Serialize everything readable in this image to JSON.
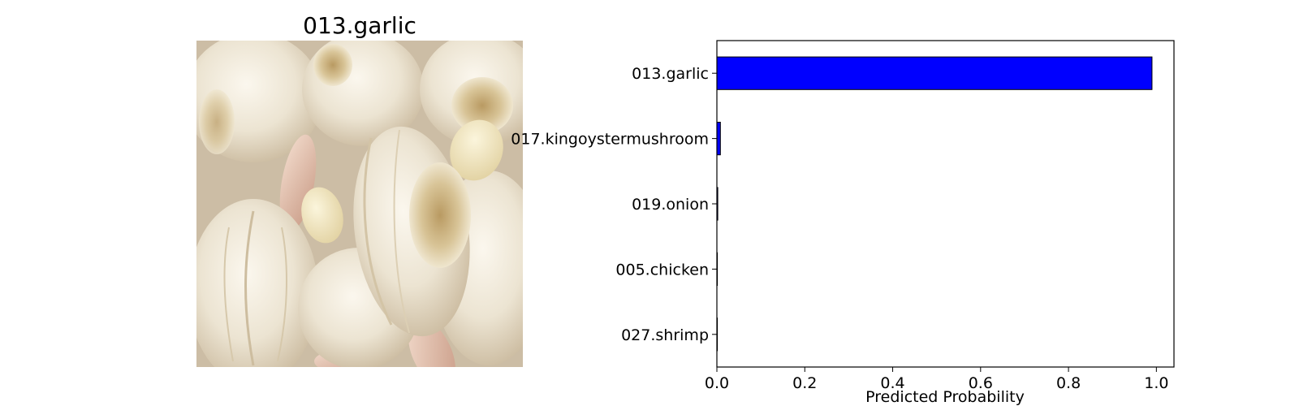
{
  "image_panel": {
    "title": "013.garlic",
    "picture": "garlic-bulbs-photo"
  },
  "colors": {
    "bar_fill": "#0000ff",
    "bar_edge": "#000000",
    "axes": "#000000",
    "background": "#ffffff"
  },
  "chart_data": {
    "type": "bar",
    "orientation": "horizontal",
    "categories": [
      "013.garlic",
      "017.kingoystermushroom",
      "019.onion",
      "005.chicken",
      "027.shrimp"
    ],
    "values": [
      0.99,
      0.008,
      0.002,
      0.001,
      0.001
    ],
    "xlabel": "Predicted Probability",
    "ylabel": "",
    "title": "",
    "xlim": [
      0,
      1.04
    ],
    "xticks": [
      "0.0",
      "0.2",
      "0.4",
      "0.6",
      "0.8",
      "1.0"
    ],
    "grid": false,
    "legend": "none"
  }
}
